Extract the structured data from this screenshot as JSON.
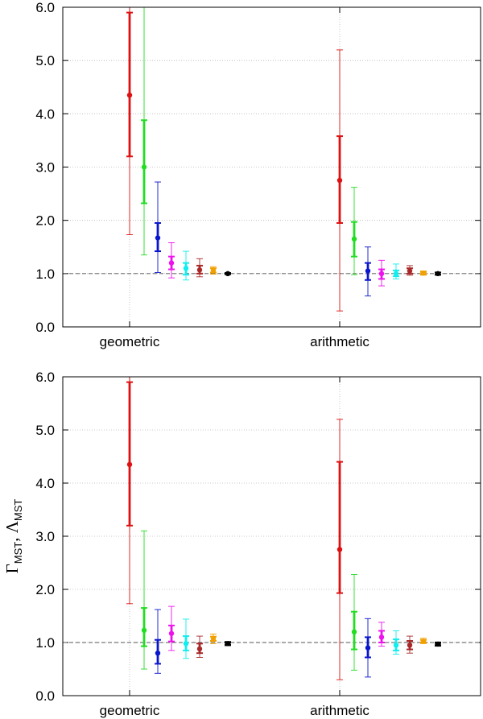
{
  "chart_data": [
    {
      "type": "scatter",
      "title": "",
      "xlabel": "",
      "ylabel": "ΓMST, ΛMST",
      "ylabel_parts": {
        "gamma": "Γ",
        "lambda": "Λ",
        "sub": "MST",
        "sep": ", "
      },
      "ylim": [
        0,
        6
      ],
      "yticks": [
        "0.0",
        "1.0",
        "2.0",
        "3.0",
        "4.0",
        "5.0",
        "6.0"
      ],
      "show_ylabel": false,
      "reference_line": 1.0,
      "categories": [
        "geometric",
        "arithmetic"
      ],
      "series": [
        {
          "name": "red",
          "color": "#dd1111",
          "values": [
            4.35,
            2.75
          ],
          "err_inner": [
            [
              3.2,
              5.9
            ],
            [
              1.95,
              3.58
            ]
          ],
          "err_outer": [
            [
              1.73,
              6.0
            ],
            [
              0.3,
              5.2
            ]
          ]
        },
        {
          "name": "green",
          "color": "#22dd22",
          "values": [
            3.0,
            1.65
          ],
          "err_inner": [
            [
              2.32,
              3.88
            ],
            [
              1.32,
              1.97
            ]
          ],
          "err_outer": [
            [
              1.35,
              6.0
            ],
            [
              0.98,
              2.62
            ]
          ]
        },
        {
          "name": "blue",
          "color": "#0a16cc",
          "values": [
            1.67,
            1.05
          ],
          "err_inner": [
            [
              1.42,
              1.95
            ],
            [
              0.88,
              1.2
            ]
          ],
          "err_outer": [
            [
              1.02,
              2.72
            ],
            [
              0.58,
              1.5
            ]
          ]
        },
        {
          "name": "magenta",
          "color": "#ee11ee",
          "values": [
            1.2,
            1.0
          ],
          "err_inner": [
            [
              1.08,
              1.32
            ],
            [
              0.9,
              1.08
            ]
          ],
          "err_outer": [
            [
              0.92,
              1.58
            ],
            [
              0.77,
              1.25
            ]
          ]
        },
        {
          "name": "cyan",
          "color": "#11eeee",
          "values": [
            1.1,
            1.0
          ],
          "err_inner": [
            [
              0.98,
              1.2
            ],
            [
              0.95,
              1.06
            ]
          ],
          "err_outer": [
            [
              0.88,
              1.42
            ],
            [
              0.9,
              1.18
            ]
          ]
        },
        {
          "name": "brown",
          "color": "#aa2828",
          "values": [
            1.07,
            1.05
          ],
          "err_inner": [
            [
              1.0,
              1.15
            ],
            [
              1.0,
              1.1
            ]
          ],
          "err_outer": [
            [
              0.94,
              1.28
            ],
            [
              0.97,
              1.15
            ]
          ]
        },
        {
          "name": "orange",
          "color": "#f0a000",
          "values": [
            1.06,
            1.01
          ],
          "err_inner": [
            [
              1.02,
              1.1
            ],
            [
              0.99,
              1.03
            ]
          ],
          "err_outer": [
            [
              0.99,
              1.13
            ],
            [
              0.97,
              1.05
            ]
          ]
        },
        {
          "name": "black",
          "color": "#000000",
          "values": [
            1.0,
            1.0
          ],
          "err_inner": [
            [
              0.99,
              1.01
            ],
            [
              0.98,
              1.02
            ]
          ],
          "err_outer": [
            [
              0.98,
              1.02
            ],
            [
              0.97,
              1.03
            ]
          ]
        }
      ]
    },
    {
      "type": "scatter",
      "title": "",
      "xlabel": "",
      "ylabel": "ΓMST, ΛMST",
      "ylabel_parts": {
        "gamma": "Γ",
        "lambda": "Λ",
        "sub": "MST",
        "sep": ", "
      },
      "ylim": [
        0,
        6
      ],
      "yticks": [
        "0.0",
        "1.0",
        "2.0",
        "3.0",
        "4.0",
        "5.0",
        "6.0"
      ],
      "show_ylabel": true,
      "reference_line": 1.0,
      "categories": [
        "geometric",
        "arithmetic"
      ],
      "series": [
        {
          "name": "red",
          "color": "#dd1111",
          "values": [
            4.35,
            2.75
          ],
          "err_inner": [
            [
              3.2,
              5.9
            ],
            [
              1.93,
              4.4
            ]
          ],
          "err_outer": [
            [
              1.73,
              6.0
            ],
            [
              0.3,
              5.2
            ]
          ]
        },
        {
          "name": "green",
          "color": "#22dd22",
          "values": [
            1.23,
            1.2
          ],
          "err_inner": [
            [
              0.93,
              1.65
            ],
            [
              0.87,
              1.58
            ]
          ],
          "err_outer": [
            [
              0.5,
              3.1
            ],
            [
              0.48,
              2.28
            ]
          ]
        },
        {
          "name": "blue",
          "color": "#0a16cc",
          "values": [
            0.8,
            0.9
          ],
          "err_inner": [
            [
              0.6,
              1.05
            ],
            [
              0.72,
              1.1
            ]
          ],
          "err_outer": [
            [
              0.42,
              1.62
            ],
            [
              0.35,
              1.45
            ]
          ]
        },
        {
          "name": "magenta",
          "color": "#ee11ee",
          "values": [
            1.17,
            1.1
          ],
          "err_inner": [
            [
              1.02,
              1.32
            ],
            [
              1.0,
              1.22
            ]
          ],
          "err_outer": [
            [
              0.85,
              1.68
            ],
            [
              0.93,
              1.38
            ]
          ]
        },
        {
          "name": "cyan",
          "color": "#11eeee",
          "values": [
            0.98,
            0.95
          ],
          "err_inner": [
            [
              0.85,
              1.12
            ],
            [
              0.85,
              1.06
            ]
          ],
          "err_outer": [
            [
              0.7,
              1.44
            ],
            [
              0.78,
              1.22
            ]
          ]
        },
        {
          "name": "brown",
          "color": "#aa2828",
          "values": [
            0.88,
            0.95
          ],
          "err_inner": [
            [
              0.8,
              0.98
            ],
            [
              0.87,
              1.03
            ]
          ],
          "err_outer": [
            [
              0.72,
              1.12
            ],
            [
              0.8,
              1.12
            ]
          ]
        },
        {
          "name": "orange",
          "color": "#f0a000",
          "values": [
            1.07,
            1.02
          ],
          "err_inner": [
            [
              1.03,
              1.11
            ],
            [
              1.0,
              1.05
            ]
          ],
          "err_outer": [
            [
              0.98,
              1.16
            ],
            [
              0.98,
              1.08
            ]
          ]
        },
        {
          "name": "black",
          "color": "#000000",
          "values": [
            0.98,
            0.97
          ],
          "err_inner": [
            [
              0.96,
              1.0
            ],
            [
              0.95,
              0.99
            ]
          ],
          "err_outer": [
            [
              0.94,
              1.02
            ],
            [
              0.93,
              1.01
            ]
          ]
        }
      ]
    }
  ]
}
